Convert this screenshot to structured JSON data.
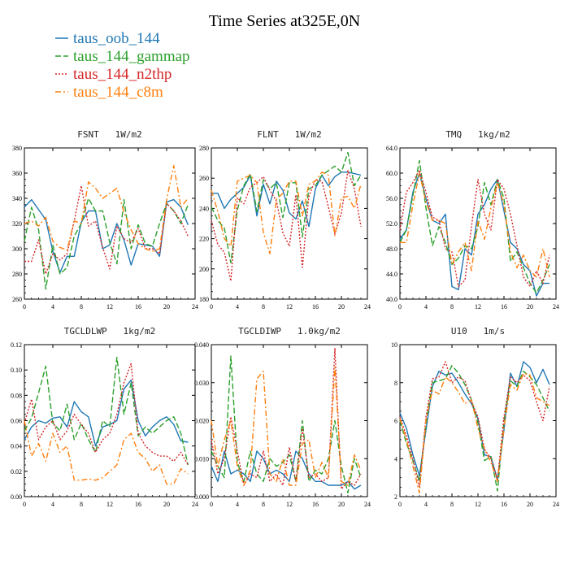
{
  "figure": {
    "title": "Time Series at325E,0N",
    "legend": [
      {
        "label": "taus_oob_144",
        "color": "#1f77b4",
        "dash": ""
      },
      {
        "label": "taus_144_gammap",
        "color": "#2ca02c",
        "dash": "7,3"
      },
      {
        "label": "taus_144_n2thp",
        "color": "#d62728",
        "dash": "2,2"
      },
      {
        "label": "taus_144_c8m",
        "color": "#ff7f0e",
        "dash": "7,3,2,3"
      }
    ]
  },
  "chart_data": [
    {
      "type": "line",
      "title": "FSNT   1W/m2",
      "xlim": [
        0,
        24
      ],
      "ylim": [
        260,
        380
      ],
      "xticks": [
        "0",
        "4",
        "8",
        "12",
        "16",
        "20",
        "24"
      ],
      "yticks": [
        "260",
        "280",
        "300",
        "320",
        "340",
        "360",
        "380"
      ],
      "x": [
        0,
        1,
        2,
        3,
        4,
        5,
        6,
        7,
        8,
        9,
        10,
        11,
        12,
        13,
        14,
        15,
        16,
        17,
        18,
        19,
        20,
        21,
        22,
        23
      ],
      "series": [
        {
          "name": "taus_oob_144",
          "values": [
            333,
            339,
            331,
            323,
            298,
            281,
            294,
            294,
            321,
            330,
            330,
            300,
            303,
            320,
            307,
            287,
            304,
            303,
            302,
            294,
            337,
            339,
            333,
            319
          ]
        },
        {
          "name": "taus_144_gammap",
          "values": [
            306,
            333,
            315,
            268,
            303,
            280,
            285,
            310,
            320,
            340,
            330,
            330,
            305,
            288,
            339,
            300,
            319,
            304,
            302,
            320,
            336,
            330,
            320,
            335
          ]
        },
        {
          "name": "taus_144_n2thp",
          "values": [
            290,
            290,
            307,
            280,
            296,
            291,
            296,
            322,
            350,
            318,
            322,
            301,
            284,
            318,
            308,
            305,
            316,
            300,
            300,
            296,
            336,
            330,
            322,
            310
          ]
        },
        {
          "name": "taus_144_c8m",
          "values": [
            320,
            322,
            318,
            325,
            306,
            301,
            299,
            322,
            320,
            353,
            348,
            340,
            344,
            348,
            329,
            315,
            304,
            300,
            298,
            300,
            339,
            366,
            333,
            340
          ]
        }
      ]
    },
    {
      "type": "line",
      "title": "FLNT   1W/m2",
      "xlim": [
        0,
        24
      ],
      "ylim": [
        180,
        280
      ],
      "xticks": [
        "0",
        "4",
        "8",
        "12",
        "16",
        "20",
        "24"
      ],
      "yticks": [
        "180",
        "200",
        "220",
        "240",
        "260",
        "280"
      ],
      "x": [
        0,
        1,
        2,
        3,
        4,
        5,
        6,
        7,
        8,
        9,
        10,
        11,
        12,
        13,
        14,
        15,
        16,
        17,
        18,
        19,
        20,
        21,
        22,
        23
      ],
      "series": [
        {
          "name": "taus_oob_144",
          "values": [
            250,
            250,
            240,
            246,
            250,
            254,
            262,
            235,
            256,
            243,
            258,
            252,
            237,
            233,
            245,
            228,
            253,
            262,
            255,
            261,
            264,
            264,
            263,
            262
          ]
        },
        {
          "name": "taus_144_gammap",
          "values": [
            241,
            232,
            227,
            204,
            239,
            255,
            263,
            238,
            259,
            253,
            257,
            234,
            257,
            257,
            221,
            253,
            255,
            262,
            265,
            268,
            264,
            277,
            255,
            262
          ]
        },
        {
          "name": "taus_144_n2thp",
          "values": [
            232,
            216,
            211,
            192,
            247,
            243,
            254,
            257,
            261,
            252,
            245,
            224,
            215,
            249,
            201,
            248,
            259,
            258,
            241,
            223,
            237,
            265,
            253,
            228
          ]
        },
        {
          "name": "taus_144_c8m",
          "values": [
            252,
            238,
            220,
            215,
            258,
            260,
            262,
            257,
            224,
            210,
            246,
            250,
            258,
            258,
            235,
            256,
            258,
            264,
            262,
            222,
            247,
            248,
            240,
            256
          ]
        }
      ]
    },
    {
      "type": "line",
      "title": "TMQ   1kg/m2",
      "xlim": [
        0,
        24
      ],
      "ylim": [
        40.0,
        64.0
      ],
      "xticks": [
        "0",
        "4",
        "8",
        "12",
        "16",
        "20",
        "24"
      ],
      "yticks": [
        "40.0",
        "44.0",
        "48.0",
        "52.0",
        "56.0",
        "60.0",
        "64.0"
      ],
      "x": [
        0,
        1,
        2,
        3,
        4,
        5,
        6,
        7,
        8,
        9,
        10,
        11,
        12,
        13,
        14,
        15,
        16,
        17,
        18,
        19,
        20,
        21,
        22,
        23
      ],
      "series": [
        {
          "name": "taus_oob_144",
          "values": [
            49.5,
            51,
            57,
            60,
            56,
            52.5,
            52,
            53.5,
            42,
            41.5,
            48,
            47,
            53.5,
            55,
            57.5,
            59,
            54,
            49,
            48,
            45.5,
            44.5,
            40.5,
            42.5,
            42.5
          ]
        },
        {
          "name": "taus_144_gammap",
          "values": [
            49,
            51,
            56.5,
            62,
            54.5,
            48.5,
            51.5,
            49,
            45.5,
            46.5,
            48.5,
            48,
            51.5,
            58.5,
            55,
            59,
            56,
            46,
            47.5,
            45,
            42.5,
            41,
            43,
            45.5
          ]
        },
        {
          "name": "taus_144_n2thp",
          "values": [
            51,
            57,
            58.5,
            60.5,
            57,
            53,
            52.5,
            48,
            47.5,
            42,
            43,
            51.5,
            59,
            53.5,
            51,
            59,
            57.5,
            53.5,
            48.5,
            43.5,
            42,
            44.5,
            42.5,
            47
          ]
        },
        {
          "name": "taus_144_c8m",
          "values": [
            49,
            49,
            55,
            60,
            55.5,
            52.5,
            52.5,
            52,
            45.5,
            47.5,
            49,
            44.5,
            52.5,
            49.5,
            54.5,
            58.5,
            55,
            47.5,
            45,
            47,
            44.5,
            43.5,
            48,
            43.5
          ]
        }
      ]
    },
    {
      "type": "line",
      "title": "TGCLDLWP   1kg/m2",
      "xlim": [
        0,
        24
      ],
      "ylim": [
        0.0,
        0.12
      ],
      "xticks": [
        "0",
        "4",
        "8",
        "12",
        "16",
        "20",
        "24"
      ],
      "yticks": [
        "0.00",
        "0.02",
        "0.04",
        "0.06",
        "0.08",
        "0.10",
        "0.12"
      ],
      "x": [
        0,
        1,
        2,
        3,
        4,
        5,
        6,
        7,
        8,
        9,
        10,
        11,
        12,
        13,
        14,
        15,
        16,
        17,
        18,
        19,
        20,
        21,
        22,
        23
      ],
      "series": [
        {
          "name": "taus_oob_144",
          "values": [
            0.045,
            0.055,
            0.06,
            0.058,
            0.062,
            0.063,
            0.055,
            0.075,
            0.067,
            0.063,
            0.04,
            0.055,
            0.057,
            0.06,
            0.085,
            0.092,
            0.06,
            0.048,
            0.055,
            0.06,
            0.063,
            0.057,
            0.044,
            0.043
          ]
        },
        {
          "name": "taus_144_gammap",
          "values": [
            0.052,
            0.062,
            0.082,
            0.103,
            0.058,
            0.052,
            0.073,
            0.045,
            0.058,
            0.045,
            0.035,
            0.06,
            0.055,
            0.11,
            0.065,
            0.09,
            0.048,
            0.055,
            0.05,
            0.055,
            0.06,
            0.063,
            0.05,
            0.025
          ]
        },
        {
          "name": "taus_144_n2thp",
          "values": [
            0.058,
            0.077,
            0.045,
            0.055,
            0.06,
            0.045,
            0.052,
            0.065,
            0.057,
            0.05,
            0.035,
            0.045,
            0.05,
            0.065,
            0.09,
            0.105,
            0.05,
            0.04,
            0.035,
            0.032,
            0.032,
            0.028,
            0.035,
            0.025
          ]
        },
        {
          "name": "taus_144_c8m",
          "values": [
            0.06,
            0.032,
            0.042,
            0.028,
            0.05,
            0.035,
            0.04,
            0.013,
            0.013,
            0.014,
            0.013,
            0.015,
            0.02,
            0.025,
            0.045,
            0.05,
            0.035,
            0.03,
            0.02,
            0.025,
            0.01,
            0.01,
            0.022,
            0.018
          ]
        }
      ]
    },
    {
      "type": "line",
      "title": "TGCLDIWP   1.0kg/m2",
      "xlim": [
        0,
        24
      ],
      "ylim": [
        0.0,
        0.04
      ],
      "xticks": [
        "0",
        "4",
        "8",
        "12",
        "16",
        "20",
        "24"
      ],
      "yticks": [
        "0.000",
        "0.010",
        "0.020",
        "0.030",
        "0.040"
      ],
      "x": [
        0,
        1,
        2,
        3,
        4,
        5,
        6,
        7,
        8,
        9,
        10,
        11,
        12,
        13,
        14,
        15,
        16,
        17,
        18,
        19,
        20,
        21,
        22,
        23
      ],
      "series": [
        {
          "name": "taus_oob_144",
          "values": [
            0.008,
            0.004,
            0.012,
            0.006,
            0.007,
            0.006,
            0.004,
            0.012,
            0.01,
            0.006,
            0.007,
            0.006,
            0.004,
            0.012,
            0.01,
            0.006,
            0.004,
            0.004,
            0.003,
            0.003,
            0.003,
            0.004,
            0.002,
            0.003
          ]
        },
        {
          "name": "taus_144_gammap",
          "values": [
            0.012,
            0.008,
            0.005,
            0.037,
            0.009,
            0.004,
            0.012,
            0.006,
            0.004,
            0.01,
            0.008,
            0.009,
            0.011,
            0.004,
            0.02,
            0.004,
            0.007,
            0.006,
            0.01,
            0.02,
            0.008,
            0.001,
            0.01,
            0.005
          ]
        },
        {
          "name": "taus_144_n2thp",
          "values": [
            0.015,
            0.006,
            0.01,
            0.021,
            0.012,
            0.003,
            0.006,
            0.005,
            0.012,
            0.004,
            0.006,
            0.003,
            0.013,
            0.004,
            0.018,
            0.005,
            0.006,
            0.004,
            0.005,
            0.039,
            0.002,
            0.004,
            0.003,
            0.006
          ]
        },
        {
          "name": "taus_144_c8m",
          "values": [
            0.02,
            0.008,
            0.015,
            0.02,
            0.008,
            0.003,
            0.007,
            0.031,
            0.033,
            0.006,
            0.004,
            0.01,
            0.003,
            0.003,
            0.014,
            0.015,
            0.005,
            0.009,
            0.005,
            0.034,
            0.004,
            0.003,
            0.011,
            0.007
          ]
        }
      ]
    },
    {
      "type": "line",
      "title": "U10   1m/s",
      "xlim": [
        0,
        24
      ],
      "ylim": [
        2,
        10
      ],
      "xticks": [
        "0",
        "4",
        "8",
        "12",
        "16",
        "20",
        "24"
      ],
      "yticks": [
        "2",
        "4",
        "6",
        "8",
        "10"
      ],
      "x": [
        0,
        1,
        2,
        3,
        4,
        5,
        6,
        7,
        8,
        9,
        10,
        11,
        12,
        13,
        14,
        15,
        16,
        17,
        18,
        19,
        20,
        21,
        22,
        23
      ],
      "series": [
        {
          "name": "taus_oob_144",
          "values": [
            6.4,
            5.6,
            4.2,
            3.1,
            5.5,
            7.8,
            8.6,
            8.4,
            8.5,
            8.0,
            7.4,
            6.9,
            6.1,
            4.2,
            4.1,
            2.9,
            5.5,
            8.5,
            7.8,
            9.1,
            8.8,
            8.0,
            8.7,
            7.9
          ]
        },
        {
          "name": "taus_144_gammap",
          "values": [
            6.0,
            4.8,
            3.9,
            2.8,
            5.8,
            8.0,
            8.1,
            8.2,
            8.9,
            8.5,
            7.9,
            7.1,
            5.9,
            3.9,
            4.1,
            2.3,
            6.0,
            8.1,
            7.8,
            8.6,
            8.3,
            7.9,
            7.2,
            6.5
          ]
        },
        {
          "name": "taus_144_n2thp",
          "values": [
            6.2,
            5.2,
            4.0,
            2.5,
            6.2,
            8.2,
            8.3,
            9.1,
            8.0,
            8.3,
            8.1,
            7.0,
            6.2,
            4.5,
            4.0,
            2.9,
            6.2,
            8.3,
            8.0,
            8.4,
            8.1,
            7.0,
            6.0,
            7.8
          ]
        },
        {
          "name": "taus_144_c8m",
          "values": [
            6.1,
            5.0,
            3.6,
            2.2,
            6.0,
            7.6,
            7.4,
            8.3,
            8.0,
            7.5,
            6.9,
            7.1,
            5.6,
            4.5,
            3.8,
            2.8,
            5.6,
            7.9,
            7.6,
            8.5,
            8.4,
            7.2,
            7.0,
            6.8
          ]
        }
      ]
    }
  ]
}
